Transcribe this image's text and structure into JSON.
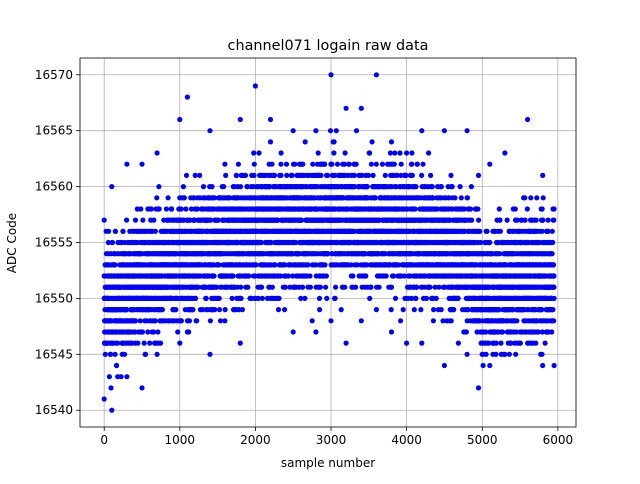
{
  "chart_data": {
    "type": "scatter",
    "title": "channel071 logain raw data",
    "xlabel": "sample number",
    "ylabel": "ADC Code",
    "xlim": [
      -320,
      6240
    ],
    "ylim": [
      16538.5,
      16571.5
    ],
    "x_ticks": [
      0,
      1000,
      2000,
      3000,
      4000,
      5000,
      6000
    ],
    "y_ticks": [
      16540,
      16545,
      16550,
      16555,
      16560,
      16565,
      16570
    ],
    "x_tick_labels": [
      "0",
      "1000",
      "2000",
      "3000",
      "4000",
      "5000",
      "6000"
    ],
    "y_tick_labels": [
      "16540",
      "16545",
      "16550",
      "16555",
      "16560",
      "16565",
      "16570"
    ],
    "grid": true,
    "marker": "circle",
    "color": "#0000ff",
    "n_points": 6000,
    "series": [
      {
        "x_range": [
          0,
          5950
        ],
        "envelope": [
          {
            "x": 0,
            "min": 16541,
            "max": 16557
          },
          {
            "x": 100,
            "min": 16540,
            "max": 16560
          },
          {
            "x": 300,
            "min": 16543,
            "max": 16562
          },
          {
            "x": 500,
            "min": 16542,
            "max": 16562
          },
          {
            "x": 700,
            "min": 16545,
            "max": 16563
          },
          {
            "x": 1000,
            "min": 16546,
            "max": 16566
          },
          {
            "x": 1100,
            "min": 16547,
            "max": 16568
          },
          {
            "x": 1400,
            "min": 16545,
            "max": 16565
          },
          {
            "x": 1800,
            "min": 16546,
            "max": 16566
          },
          {
            "x": 2000,
            "min": 16550,
            "max": 16569
          },
          {
            "x": 2200,
            "min": 16550,
            "max": 16566
          },
          {
            "x": 2500,
            "min": 16547,
            "max": 16565
          },
          {
            "x": 2800,
            "min": 16547,
            "max": 16565
          },
          {
            "x": 3000,
            "min": 16548,
            "max": 16570
          },
          {
            "x": 3200,
            "min": 16546,
            "max": 16567
          },
          {
            "x": 3400,
            "min": 16548,
            "max": 16567
          },
          {
            "x": 3600,
            "min": 16549,
            "max": 16570
          },
          {
            "x": 3800,
            "min": 16547,
            "max": 16564
          },
          {
            "x": 4000,
            "min": 16546,
            "max": 16563
          },
          {
            "x": 4200,
            "min": 16546,
            "max": 16565
          },
          {
            "x": 4500,
            "min": 16544,
            "max": 16565
          },
          {
            "x": 4800,
            "min": 16545,
            "max": 16565
          },
          {
            "x": 4950,
            "min": 16542,
            "max": 16561
          },
          {
            "x": 5100,
            "min": 16544,
            "max": 16562
          },
          {
            "x": 5300,
            "min": 16545,
            "max": 16563
          },
          {
            "x": 5600,
            "min": 16546,
            "max": 16566
          },
          {
            "x": 5800,
            "min": 16544,
            "max": 16561
          },
          {
            "x": 5950,
            "min": 16544,
            "max": 16558
          }
        ],
        "center_profile": [
          {
            "x": 0,
            "center": 16549.5
          },
          {
            "x": 500,
            "center": 16551.5
          },
          {
            "x": 1000,
            "center": 16553.5
          },
          {
            "x": 2000,
            "center": 16556
          },
          {
            "x": 3000,
            "center": 16557
          },
          {
            "x": 3600,
            "center": 16556.5
          },
          {
            "x": 4500,
            "center": 16555
          },
          {
            "x": 4900,
            "center": 16552.5
          },
          {
            "x": 5000,
            "center": 16550.5
          },
          {
            "x": 5500,
            "center": 16552
          },
          {
            "x": 5950,
            "center": 16552
          }
        ]
      }
    ]
  }
}
